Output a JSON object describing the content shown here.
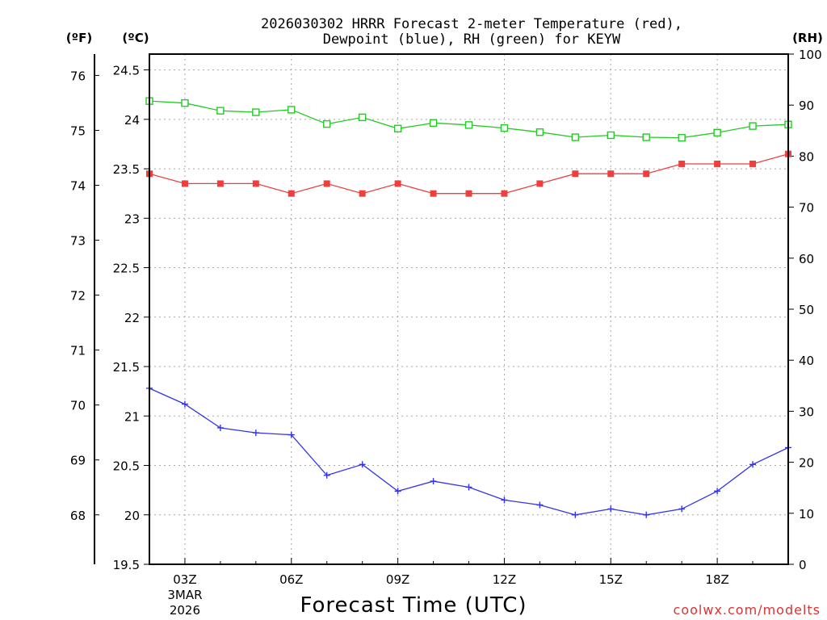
{
  "chart_data": {
    "type": "line",
    "title_line1": "2026030302 HRRR Forecast 2-meter Temperature (red),",
    "title_line2": "Dewpoint (blue), RH (green) for KEYW",
    "xlabel": "Forecast Time (UTC)",
    "credit": "coolwx.com/modelts",
    "units": {
      "fahrenheit": "(ºF)",
      "celsius": "(ºC)",
      "rh": "(RH)"
    },
    "x_hours": [
      2,
      3,
      4,
      5,
      6,
      7,
      8,
      9,
      10,
      11,
      12,
      13,
      14,
      15,
      16,
      17,
      18,
      19,
      20
    ],
    "xlim": [
      2,
      20
    ],
    "x_ticks": [
      {
        "hour": 3,
        "label": "03Z",
        "date1": "3MAR",
        "date2": "2026"
      },
      {
        "hour": 6,
        "label": "06Z"
      },
      {
        "hour": 9,
        "label": "09Z"
      },
      {
        "hour": 12,
        "label": "12Z"
      },
      {
        "hour": 15,
        "label": "15Z"
      },
      {
        "hour": 18,
        "label": "18Z"
      }
    ],
    "celsius_axis": {
      "ylim": [
        19.5,
        24.66
      ],
      "ticks": [
        "19.5",
        "20",
        "20.5",
        "21",
        "21.5",
        "22",
        "22.5",
        "23",
        "23.5",
        "24",
        "24.5"
      ]
    },
    "fahrenheit_axis": {
      "ticks": [
        "68",
        "69",
        "70",
        "71",
        "72",
        "73",
        "74",
        "75",
        "76"
      ]
    },
    "rh_axis": {
      "ylim": [
        0,
        100
      ],
      "ticks": [
        "0",
        "10",
        "20",
        "30",
        "40",
        "50",
        "60",
        "70",
        "80",
        "90",
        "100"
      ]
    },
    "series": [
      {
        "name": "Temperature",
        "axis": "celsius",
        "color": "#ee3f3f",
        "marker": "filled-square",
        "values": [
          23.45,
          23.35,
          23.35,
          23.35,
          23.25,
          23.35,
          23.25,
          23.35,
          23.25,
          23.25,
          23.25,
          23.35,
          23.45,
          23.45,
          23.45,
          23.55,
          23.55,
          23.55,
          23.65
        ]
      },
      {
        "name": "Dewpoint",
        "axis": "celsius",
        "color": "#3333ee",
        "marker": "plus",
        "values": [
          21.28,
          21.12,
          20.88,
          20.83,
          20.81,
          20.4,
          20.51,
          20.24,
          20.34,
          20.28,
          20.15,
          20.1,
          20.0,
          20.06,
          20.0,
          20.06,
          20.24,
          20.51,
          20.68
        ]
      },
      {
        "name": "RH",
        "axis": "rh",
        "color": "#22cc22",
        "marker": "open-square",
        "values": [
          90.8,
          90.4,
          88.9,
          88.6,
          89.1,
          86.3,
          87.6,
          85.4,
          86.5,
          86.1,
          85.5,
          84.7,
          83.7,
          84.1,
          83.7,
          83.6,
          84.6,
          85.9,
          86.2
        ]
      }
    ]
  }
}
